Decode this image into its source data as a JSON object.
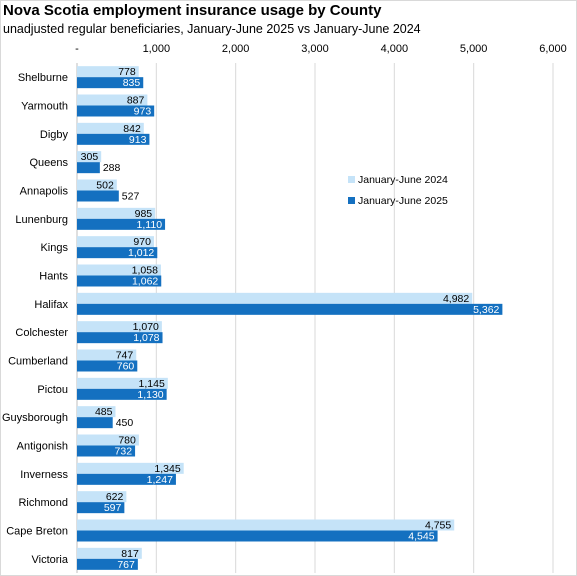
{
  "chart_data": {
    "type": "bar",
    "orientation": "horizontal",
    "title": "Nova Scotia employment insurance usage by County",
    "subtitle": "unadjusted regular beneficiaries, January-June 2025 vs January-June 2024",
    "categories": [
      "Shelburne",
      "Yarmouth",
      "Digby",
      "Queens",
      "Annapolis",
      "Lunenburg",
      "Kings",
      "Hants",
      "Halifax",
      "Colchester",
      "Cumberland",
      "Pictou",
      "Guysborough",
      "Antigonish",
      "Inverness",
      "Richmond",
      "Cape Breton",
      "Victoria"
    ],
    "series": [
      {
        "name": "January-June 2024",
        "color": "#c5e3f8",
        "values": [
          778,
          887,
          842,
          305,
          502,
          985,
          970,
          1058,
          4982,
          1070,
          747,
          1145,
          485,
          780,
          1345,
          622,
          4755,
          817
        ]
      },
      {
        "name": "January-June 2025",
        "color": "#1470c0",
        "values": [
          835,
          973,
          913,
          288,
          527,
          1110,
          1012,
          1062,
          5362,
          1078,
          760,
          1130,
          450,
          732,
          1247,
          597,
          4545,
          767
        ]
      }
    ],
    "xlim": [
      0,
      6000
    ],
    "ticks": [
      0,
      1000,
      2000,
      3000,
      4000,
      5000,
      6000
    ],
    "tick_labels": [
      "-",
      "1,000",
      "2,000",
      "3,000",
      "4,000",
      "5,000",
      "6,000"
    ],
    "axis_position": "top",
    "grid": true,
    "legend_position": "right-middle"
  }
}
